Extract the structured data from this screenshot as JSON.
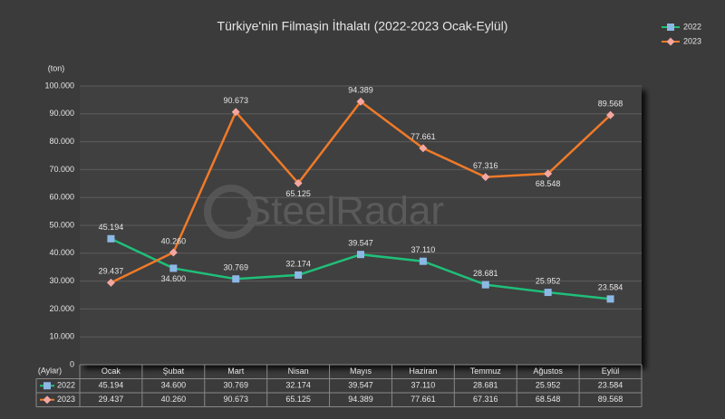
{
  "chart_data": {
    "type": "line",
    "title": "Türkiye'nin Filmaşin İthalatı (2022-2023 Ocak-Eylül)",
    "y_label": "(ton)",
    "x_label": "(Aylar)",
    "watermark": "SteelRadar",
    "categories": [
      "Ocak",
      "Şubat",
      "Mart",
      "Nisan",
      "Mayıs",
      "Haziran",
      "Temmuz",
      "Ağustos",
      "Eylül"
    ],
    "series": [
      {
        "name": "2022",
        "color": "#1fbf7a",
        "marker_color": "#8cb8e6",
        "marker": "square",
        "values": [
          45194,
          34600,
          30769,
          32174,
          39547,
          37110,
          28681,
          25952,
          23584
        ],
        "value_labels": [
          "45.194",
          "34.600",
          "30.769",
          "32.174",
          "39.547",
          "37.110",
          "28.681",
          "25.952",
          "23.584"
        ]
      },
      {
        "name": "2023",
        "color": "#f07a28",
        "marker_color": "#f4a7a0",
        "marker": "diamond",
        "values": [
          29437,
          40260,
          90673,
          65125,
          94389,
          77661,
          67316,
          68548,
          89568
        ],
        "value_labels": [
          "29.437",
          "40.260",
          "90.673",
          "65.125",
          "94.389",
          "77.661",
          "67.316",
          "68.548",
          "89.568"
        ]
      }
    ],
    "ylim": [
      0,
      100000
    ],
    "yticks": [
      0,
      {
        "value": 10000,
        "label": "10.000"
      },
      {
        "value": 20000,
        "label": "20.000"
      },
      {
        "value": 30000,
        "label": "30.000"
      },
      {
        "value": 40000,
        "label": "40.000"
      },
      {
        "value": 50000,
        "label": "50.000"
      },
      {
        "value": 60000,
        "label": "60.000"
      },
      {
        "value": 70000,
        "label": "70.000"
      },
      {
        "value": 80000,
        "label": "80.000"
      },
      {
        "value": 90000,
        "label": "90.000"
      },
      {
        "value": 100000,
        "label": "100.000"
      }
    ],
    "grid": true,
    "legend": "top-right",
    "data_table": true
  }
}
